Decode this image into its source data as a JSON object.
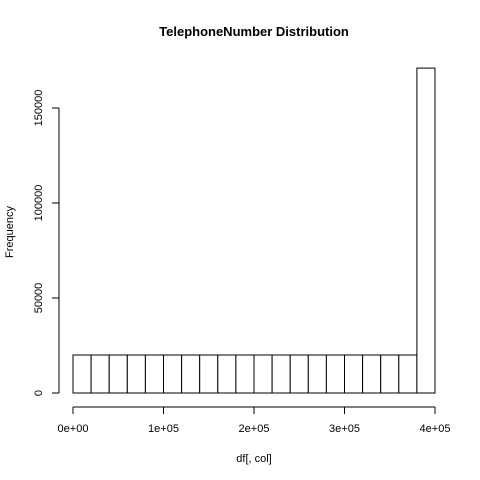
{
  "chart_data": {
    "type": "histogram",
    "title": "TelephoneNumber  Distribution",
    "xlabel": "df[, col]",
    "ylabel": "Frequency",
    "xlim": [
      0,
      400000
    ],
    "ylim": [
      0,
      172000
    ],
    "bin_width": 20000,
    "bins": [
      {
        "start": 0,
        "end": 20000,
        "count": 20000
      },
      {
        "start": 20000,
        "end": 40000,
        "count": 20000
      },
      {
        "start": 40000,
        "end": 60000,
        "count": 20000
      },
      {
        "start": 60000,
        "end": 80000,
        "count": 20000
      },
      {
        "start": 80000,
        "end": 100000,
        "count": 20000
      },
      {
        "start": 100000,
        "end": 120000,
        "count": 20000
      },
      {
        "start": 120000,
        "end": 140000,
        "count": 20000
      },
      {
        "start": 140000,
        "end": 160000,
        "count": 20000
      },
      {
        "start": 160000,
        "end": 180000,
        "count": 20000
      },
      {
        "start": 180000,
        "end": 200000,
        "count": 20000
      },
      {
        "start": 200000,
        "end": 220000,
        "count": 20000
      },
      {
        "start": 220000,
        "end": 240000,
        "count": 20000
      },
      {
        "start": 240000,
        "end": 260000,
        "count": 20000
      },
      {
        "start": 260000,
        "end": 280000,
        "count": 20000
      },
      {
        "start": 280000,
        "end": 300000,
        "count": 20000
      },
      {
        "start": 300000,
        "end": 320000,
        "count": 20000
      },
      {
        "start": 320000,
        "end": 340000,
        "count": 20000
      },
      {
        "start": 340000,
        "end": 360000,
        "count": 20000
      },
      {
        "start": 360000,
        "end": 380000,
        "count": 20000
      },
      {
        "start": 380000,
        "end": 400000,
        "count": 171000
      }
    ],
    "x_ticks": [
      {
        "value": 0,
        "label": "0e+00"
      },
      {
        "value": 100000,
        "label": "1e+05"
      },
      {
        "value": 200000,
        "label": "2e+05"
      },
      {
        "value": 300000,
        "label": "3e+05"
      },
      {
        "value": 400000,
        "label": "4e+05"
      }
    ],
    "y_ticks": [
      {
        "value": 0,
        "label": "0"
      },
      {
        "value": 50000,
        "label": "50000"
      },
      {
        "value": 100000,
        "label": "100000"
      },
      {
        "value": 150000,
        "label": "150000"
      }
    ],
    "colors": {
      "bar_fill": "#ffffff",
      "bar_stroke": "#000000",
      "axis": "#000000"
    }
  }
}
